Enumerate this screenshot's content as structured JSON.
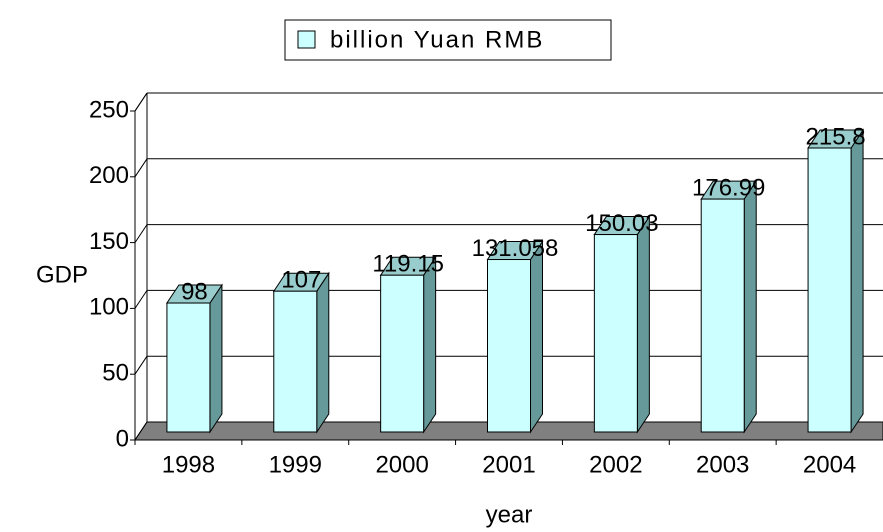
{
  "chart_data": {
    "type": "bar3d",
    "categories": [
      "1998",
      "1999",
      "2000",
      "2001",
      "2002",
      "2003",
      "2004"
    ],
    "series": [
      {
        "name": "billion Yuan RMB",
        "color": "#ccffff",
        "side_color": "#669999",
        "top_color": "#99cccc",
        "values": [
          98,
          107,
          119.15,
          131.058,
          150.03,
          176.99,
          215.8
        ]
      }
    ],
    "x_label": "year",
    "y_label": "GDP",
    "ylim": [
      0,
      250
    ],
    "yticks": [
      0,
      50,
      100,
      150,
      200,
      250
    ],
    "grid": true,
    "legend": "top"
  }
}
